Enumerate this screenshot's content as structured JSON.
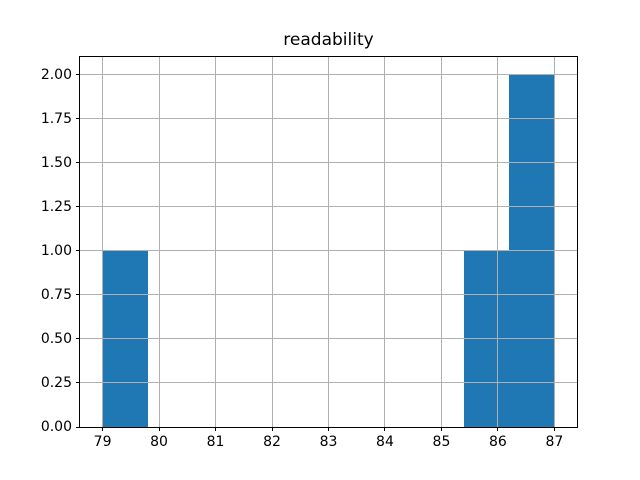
{
  "chart_data": {
    "type": "bar",
    "subtype": "histogram",
    "title": "readability",
    "xlabel": "",
    "ylabel": "",
    "bin_edges": [
      79.0,
      79.8,
      80.6,
      81.4,
      82.2,
      83.0,
      83.8,
      84.6,
      85.4,
      86.2,
      87.0
    ],
    "counts": [
      1,
      0,
      0,
      0,
      0,
      0,
      0,
      0,
      1,
      2
    ],
    "x_ticks": [
      79,
      80,
      81,
      82,
      83,
      84,
      85,
      86,
      87
    ],
    "x_tick_labels": [
      "79",
      "80",
      "81",
      "82",
      "83",
      "84",
      "85",
      "86",
      "87"
    ],
    "y_ticks": [
      0,
      0.25,
      0.5,
      0.75,
      1,
      1.25,
      1.5,
      1.75,
      2
    ],
    "y_tick_labels": [
      "0.00",
      "0.25",
      "0.50",
      "0.75",
      "1.00",
      "1.25",
      "1.50",
      "1.75",
      "2.00"
    ],
    "xlim": [
      78.6,
      87.4
    ],
    "ylim": [
      0,
      2.1
    ],
    "grid": true,
    "grid_on_top_of_bars": true,
    "legend": false,
    "colors": {
      "bar": "#1f77b4",
      "grid": "#b0b0b0",
      "spine": "#000000",
      "tick": "#000000",
      "text": "#000000",
      "background": "#ffffff"
    }
  }
}
